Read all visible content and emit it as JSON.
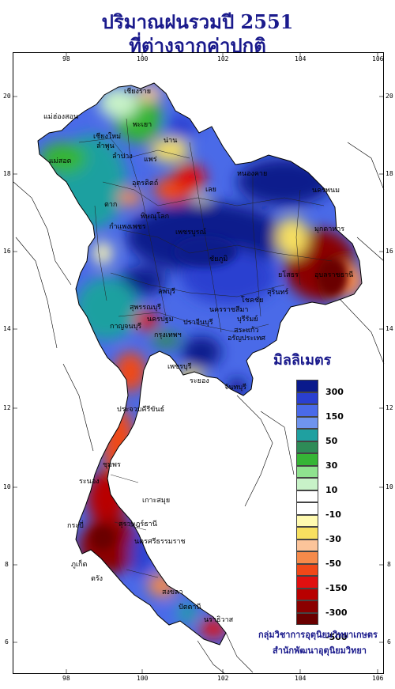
{
  "title": {
    "line1": "ปริมาณฝนรวมปี 2551",
    "line2": "ที่ต่างจากค่าปกติ"
  },
  "axes": {
    "longitude_ticks": [
      "98",
      "100",
      "102",
      "104",
      "106"
    ],
    "latitude_ticks": [
      "20",
      "18",
      "16",
      "14",
      "12",
      "10",
      "8",
      "6"
    ]
  },
  "legend": {
    "title": "มิลลิเมตร",
    "labels": [
      "300",
      "150",
      "50",
      "30",
      "10",
      "-10",
      "-30",
      "-50",
      "-150",
      "-300",
      "-500"
    ],
    "colors": [
      "#0a1a8c",
      "#2a3fd0",
      "#4a6ae8",
      "#6f94ee",
      "#1fa0a0",
      "#2e8b57",
      "#36b536",
      "#8fe28f",
      "#c8f2c8",
      "#ffffff",
      "#ffffff",
      "#fffab0",
      "#f7e060",
      "#fcc49a",
      "#f68a4a",
      "#f04818",
      "#e01010",
      "#b80000",
      "#8b0000",
      "#6a0000"
    ]
  },
  "credits": {
    "line1": "กลุ่มวิชาการอุตุนิยมวิทยาเกษตร",
    "line2": "สำนักพัฒนาอุตุนิยมวิทยา"
  },
  "places": {
    "chiangrai": "เชียงราย",
    "maehongson": "แม่ฮ่องสอน",
    "chiangmai": "เชียงใหม่",
    "lamphun": "ลำพูน",
    "phayao": "พะเยา",
    "nan": "น่าน",
    "lampang": "ลำปาง",
    "phrae": "แพร่",
    "maesot": "แม่สอด",
    "uttaradit": "อุตรดิตถ์",
    "tak": "ตาก",
    "loei": "เลย",
    "nongkhai": "หนองคาย",
    "nakhonphanom": "นครพนม",
    "mukdahan": "มุกดาหาร",
    "phitsanulok": "พิษณุโลก",
    "kamphaengphet": "กำแพงเพชร",
    "phetchabun": "เพชรบูรณ์",
    "chaiyaphum": "ชัยภูมิ",
    "ubon": "อุบลราชธานี",
    "yasothon": "ยโสธร",
    "surin": "สุรินทร์",
    "lopburi": "ลพบุรี",
    "suphanburi": "สุพรรณบุรี",
    "kanchanaburi": "กาญจนบุรี",
    "nakhonpathom": "นครปฐม",
    "bangkok": "กรุงเทพฯ",
    "prachinburi": "ปราจีนบุรี",
    "nakhonratchasima": "นครราชสีมา",
    "chokchai": "โชคชัย",
    "buriram": "บุรีรัมย์",
    "sakaeo": "สระแก้ว",
    "aranyaprathet": "อรัญประเทศ",
    "phetchaburi": "เพชรบุรี",
    "rayong": "ระยอง",
    "chanthaburi": "จันทบุรี",
    "prachuap": "ประจวบคีรีขันธ์",
    "chumphon": "ชุมพร",
    "ranong": "ระนอง",
    "suratthani": "สุราษฎร์ธานี",
    "nakhonsi": "นครศรีธรรมราช",
    "phuket": "ภูเก็ต",
    "krabi": "กระบี่",
    "trang": "ตรัง",
    "songkhla": "สงขลา",
    "pattani": "ปัตตานี",
    "narathiwat": "นราธิวาส",
    "kohsamui": "เกาะสมุย"
  }
}
